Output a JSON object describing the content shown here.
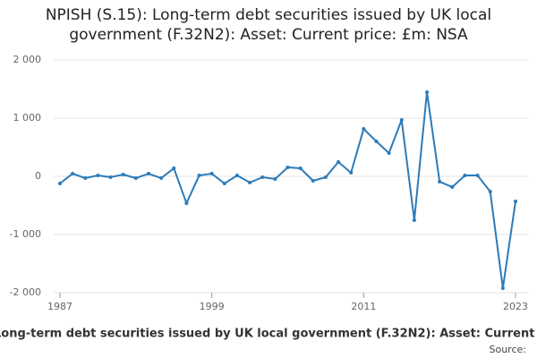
{
  "chart_data": {
    "type": "line",
    "title": "NPISH (S.15): Long-term debt securities issued by UK local government (F.32N2): Asset: Current price: £m: NSA",
    "source": "Source:",
    "x": [
      1987,
      1988,
      1989,
      1990,
      1991,
      1992,
      1993,
      1994,
      1995,
      1996,
      1997,
      1998,
      1999,
      2000,
      2001,
      2002,
      2003,
      2004,
      2005,
      2006,
      2007,
      2008,
      2009,
      2010,
      2011,
      2012,
      2013,
      2014,
      2015,
      2016,
      2017,
      2018,
      2019,
      2020,
      2021,
      2022,
      2023
    ],
    "series": [
      {
        "color": "#2b7bb9",
        "values": [
          -123,
          46,
          -31,
          15,
          -15,
          31,
          -31,
          46,
          -31,
          138,
          -462,
          15,
          46,
          -123,
          15,
          -108,
          -15,
          -46,
          154,
          138,
          -77,
          -15,
          246,
          62,
          815,
          600,
          400,
          969,
          -754,
          1446,
          -92,
          -185,
          15,
          15,
          -262,
          -1923,
          -431
        ]
      }
    ],
    "xlim": [
      1987,
      2023
    ],
    "xticks": [
      1987,
      1999,
      2011,
      2023
    ],
    "ylim": [
      -2000,
      2000
    ],
    "yticks": [
      {
        "value": -2000,
        "label": "-2 000"
      },
      {
        "value": -1000,
        "label": "-1 000"
      },
      0,
      {
        "value": 1000,
        "label": "1 000"
      },
      {
        "value": 2000,
        "label": "2 000"
      }
    ],
    "grid": true
  }
}
